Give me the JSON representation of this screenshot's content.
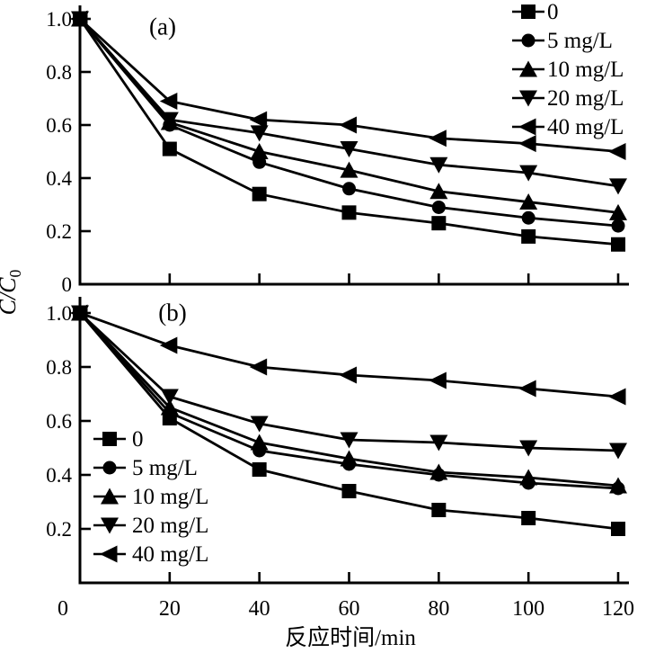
{
  "axes": {
    "ylabel_italic": "C/C",
    "ylabel_sub": "0",
    "xlabel": "反应时间/min"
  },
  "colors": {
    "ink": "#000000",
    "background": "#ffffff"
  },
  "chart_data": [
    {
      "type": "line",
      "panel_label": "(a)",
      "xlabel": "反应时间/min",
      "ylabel": "C/C0",
      "x": [
        0,
        20,
        40,
        60,
        80,
        100,
        120
      ],
      "xlim": [
        0,
        122
      ],
      "ylim": [
        0,
        1.05
      ],
      "grid": "off",
      "legend_position": "top-right",
      "origin_label": "0",
      "xtick_labels": [
        "20",
        "40",
        "60",
        "80",
        "100",
        "120"
      ],
      "yticks": [
        {
          "label": "1.0",
          "value": 1.0
        },
        {
          "label": "0.8",
          "value": 0.8
        },
        {
          "label": "0.6",
          "value": 0.6
        },
        {
          "label": "0.4",
          "value": 0.4
        },
        {
          "label": "0.2",
          "value": 0.2
        },
        {
          "label": "0",
          "value": 0
        }
      ],
      "series": [
        {
          "name": "0",
          "marker": "square",
          "values": [
            1.0,
            0.51,
            0.34,
            0.27,
            0.23,
            0.18,
            0.15
          ]
        },
        {
          "name": "5 mg/L",
          "marker": "circle",
          "values": [
            1.0,
            0.6,
            0.46,
            0.36,
            0.29,
            0.25,
            0.22
          ]
        },
        {
          "name": "10 mg/L",
          "marker": "triangle-up",
          "values": [
            1.0,
            0.61,
            0.5,
            0.43,
            0.35,
            0.31,
            0.27
          ]
        },
        {
          "name": "20 mg/L",
          "marker": "triangle-down",
          "values": [
            1.0,
            0.62,
            0.57,
            0.51,
            0.45,
            0.42,
            0.37
          ]
        },
        {
          "name": "40 mg/L",
          "marker": "triangle-left",
          "values": [
            1.0,
            0.69,
            0.62,
            0.6,
            0.55,
            0.53,
            0.5
          ]
        }
      ]
    },
    {
      "type": "line",
      "panel_label": "(b)",
      "xlabel": "反应时间/min",
      "ylabel": "C/C0",
      "x": [
        0,
        20,
        40,
        60,
        80,
        100,
        120
      ],
      "xlim": [
        0,
        122
      ],
      "ylim": [
        0,
        1.05
      ],
      "grid": "off",
      "legend_position": "bottom-left",
      "origin_label": "0",
      "xtick_labels": [
        "20",
        "40",
        "60",
        "80",
        "100",
        "120"
      ],
      "yticks": [
        {
          "label": "1.0",
          "value": 1.0
        },
        {
          "label": "0.8",
          "value": 0.8
        },
        {
          "label": "0.6",
          "value": 0.6
        },
        {
          "label": "0.4",
          "value": 0.4
        },
        {
          "label": "0.2",
          "value": 0.2
        },
        {
          "label": "0",
          "value": 0
        }
      ],
      "series": [
        {
          "name": "0",
          "marker": "square",
          "values": [
            1.0,
            0.61,
            0.42,
            0.34,
            0.27,
            0.24,
            0.2
          ]
        },
        {
          "name": "5 mg/L",
          "marker": "circle",
          "values": [
            1.0,
            0.63,
            0.49,
            0.44,
            0.4,
            0.37,
            0.35
          ]
        },
        {
          "name": "10 mg/L",
          "marker": "triangle-up",
          "values": [
            1.0,
            0.65,
            0.52,
            0.46,
            0.41,
            0.39,
            0.36
          ]
        },
        {
          "name": "20 mg/L",
          "marker": "triangle-down",
          "values": [
            1.0,
            0.69,
            0.59,
            0.53,
            0.52,
            0.5,
            0.49
          ]
        },
        {
          "name": "40 mg/L",
          "marker": "triangle-left",
          "values": [
            1.0,
            0.88,
            0.8,
            0.77,
            0.75,
            0.72,
            0.69
          ]
        }
      ]
    }
  ]
}
